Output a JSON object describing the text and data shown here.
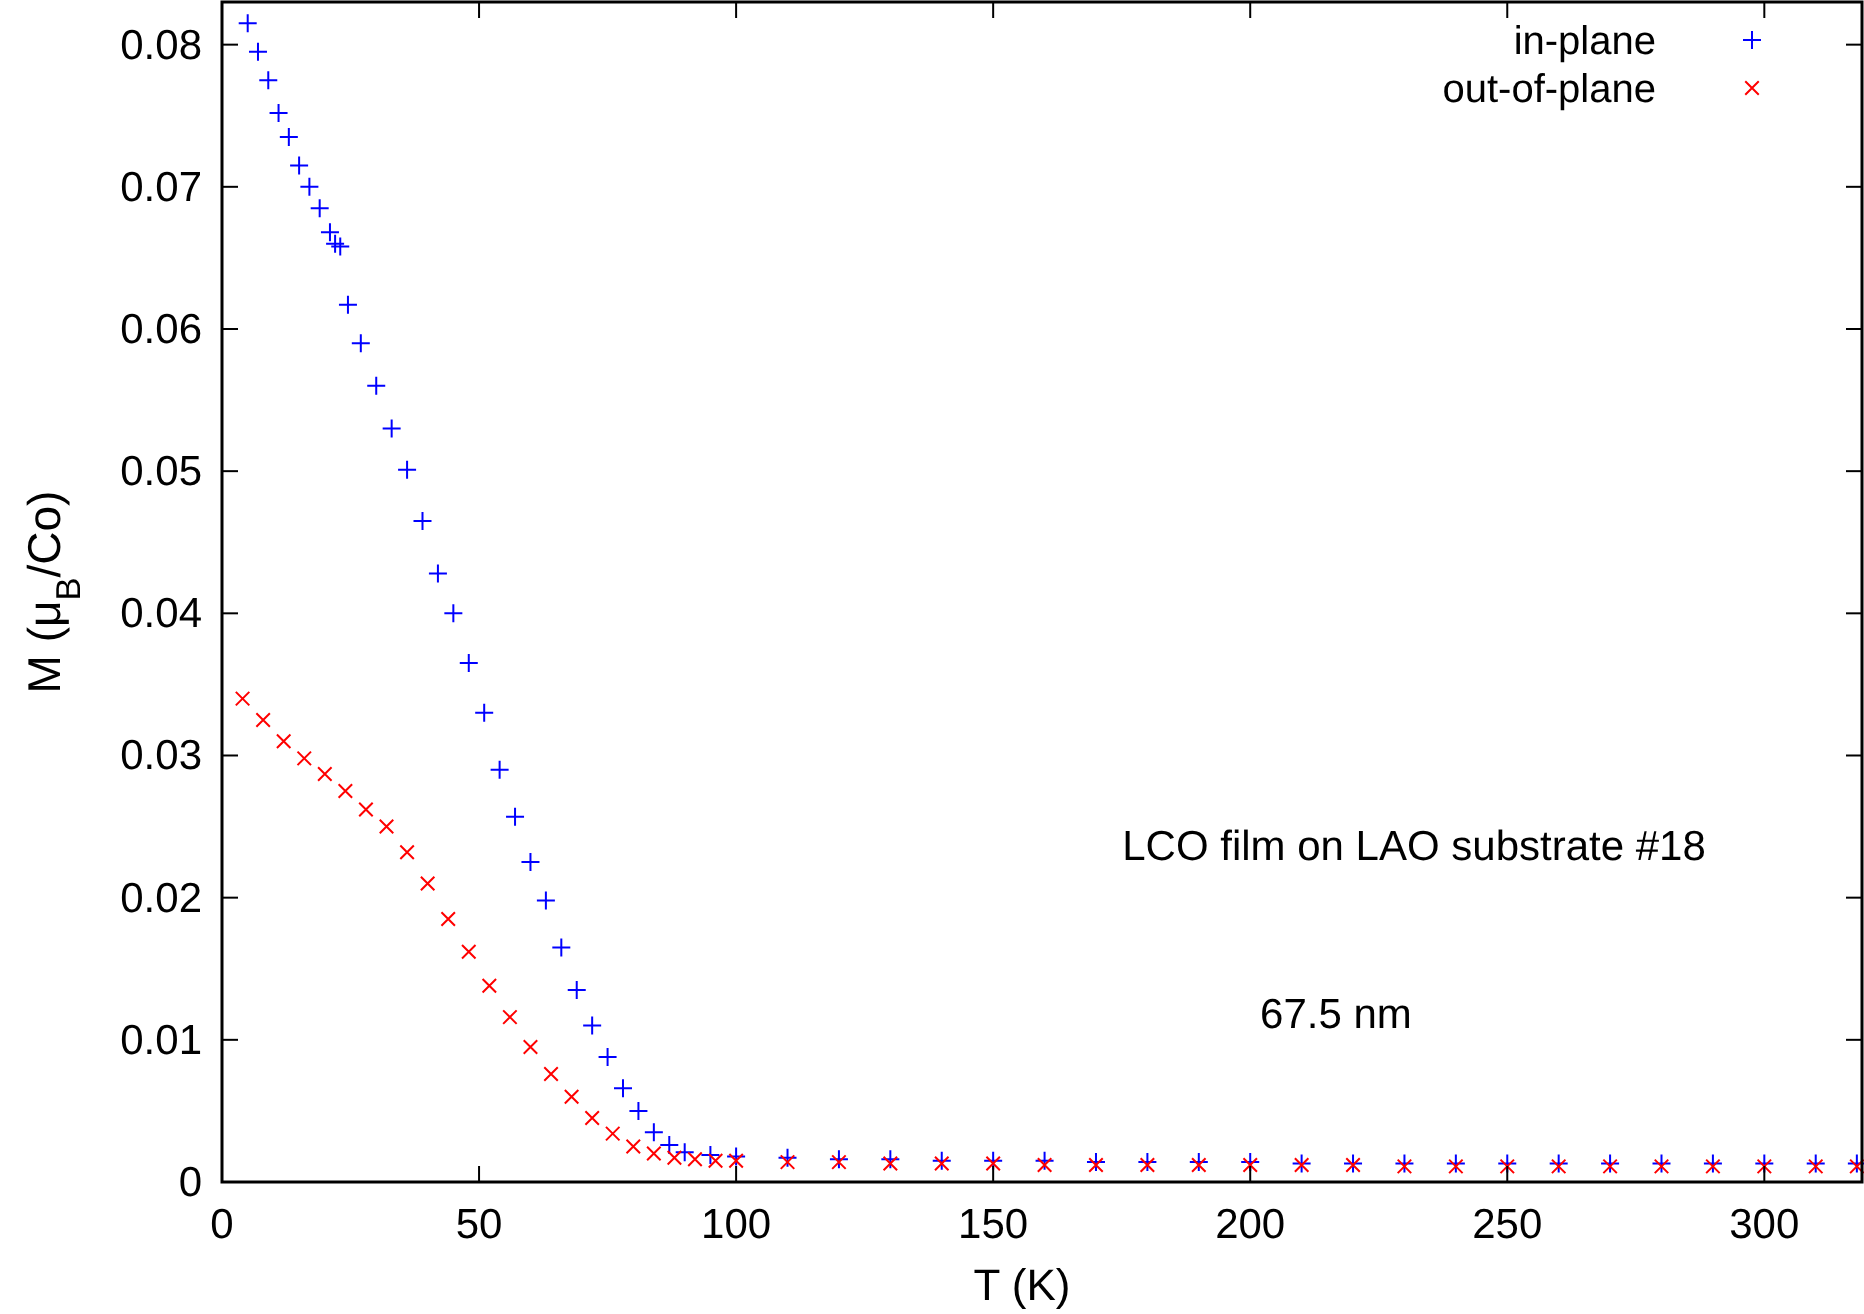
{
  "chart_data": {
    "type": "scatter",
    "xlabel": "T (K)",
    "ylabel": "M (μ$_{B}$/Co)",
    "xlim": [
      0,
      319
    ],
    "ylim": [
      0,
      0.083
    ],
    "xticks": [
      0,
      50,
      100,
      150,
      200,
      250,
      300
    ],
    "yticks": [
      0,
      0.01,
      0.02,
      0.03,
      0.04,
      0.05,
      0.06,
      0.07,
      0.08
    ],
    "grid": false,
    "legend": "top right",
    "annotations": [
      "LCO film on LAO substrate #18",
      "67.5 nm"
    ],
    "series": [
      {
        "name": "in-plane",
        "color": "#0000ff",
        "marker": "plus",
        "x": [
          5,
          7,
          9,
          11,
          13,
          15,
          17,
          19,
          21,
          22,
          23,
          24.5,
          27,
          30,
          33,
          36,
          39,
          42,
          45,
          48,
          51,
          54,
          57,
          60,
          63,
          66,
          69,
          72,
          75,
          78,
          81,
          84,
          87,
          90,
          95,
          100,
          110,
          120,
          130,
          140,
          150,
          160,
          170,
          180,
          190,
          200,
          210,
          220,
          230,
          240,
          250,
          260,
          270,
          280,
          290,
          300,
          310,
          318
        ],
        "values": [
          0.0815,
          0.0795,
          0.0775,
          0.0752,
          0.0735,
          0.0715,
          0.07,
          0.0685,
          0.0668,
          0.066,
          0.0658,
          0.0617,
          0.059,
          0.056,
          0.053,
          0.0501,
          0.0465,
          0.0428,
          0.04,
          0.0365,
          0.033,
          0.029,
          0.0257,
          0.0225,
          0.0198,
          0.0165,
          0.0135,
          0.011,
          0.0088,
          0.0066,
          0.005,
          0.0035,
          0.0026,
          0.0021,
          0.0019,
          0.0018,
          0.0017,
          0.0016,
          0.0016,
          0.0015,
          0.0015,
          0.0015,
          0.0014,
          0.0014,
          0.0014,
          0.0014,
          0.0013,
          0.0013,
          0.0013,
          0.0013,
          0.0013,
          0.0013,
          0.0013,
          0.0013,
          0.0013,
          0.0013,
          0.0013,
          0.0013
        ]
      },
      {
        "name": "out-of-plane",
        "color": "#ff0000",
        "marker": "cross",
        "x": [
          4,
          8,
          12,
          16,
          20,
          24,
          28,
          32,
          36,
          40,
          44,
          48,
          52,
          56,
          60,
          64,
          68,
          72,
          76,
          80,
          84,
          88,
          92,
          96,
          100,
          110,
          120,
          130,
          140,
          150,
          160,
          170,
          180,
          190,
          200,
          210,
          220,
          230,
          240,
          250,
          260,
          270,
          280,
          290,
          300,
          310,
          318
        ],
        "values": [
          0.034,
          0.0325,
          0.031,
          0.0298,
          0.0287,
          0.0275,
          0.0262,
          0.025,
          0.0232,
          0.021,
          0.0185,
          0.0162,
          0.0138,
          0.0116,
          0.0095,
          0.0076,
          0.006,
          0.0045,
          0.0034,
          0.0025,
          0.002,
          0.0017,
          0.0016,
          0.0015,
          0.0015,
          0.0014,
          0.0014,
          0.0013,
          0.0013,
          0.0013,
          0.0012,
          0.0012,
          0.0012,
          0.0012,
          0.0012,
          0.0012,
          0.0012,
          0.0011,
          0.0011,
          0.0011,
          0.0011,
          0.0011,
          0.0011,
          0.0011,
          0.0011,
          0.0011,
          0.0011
        ]
      }
    ]
  }
}
